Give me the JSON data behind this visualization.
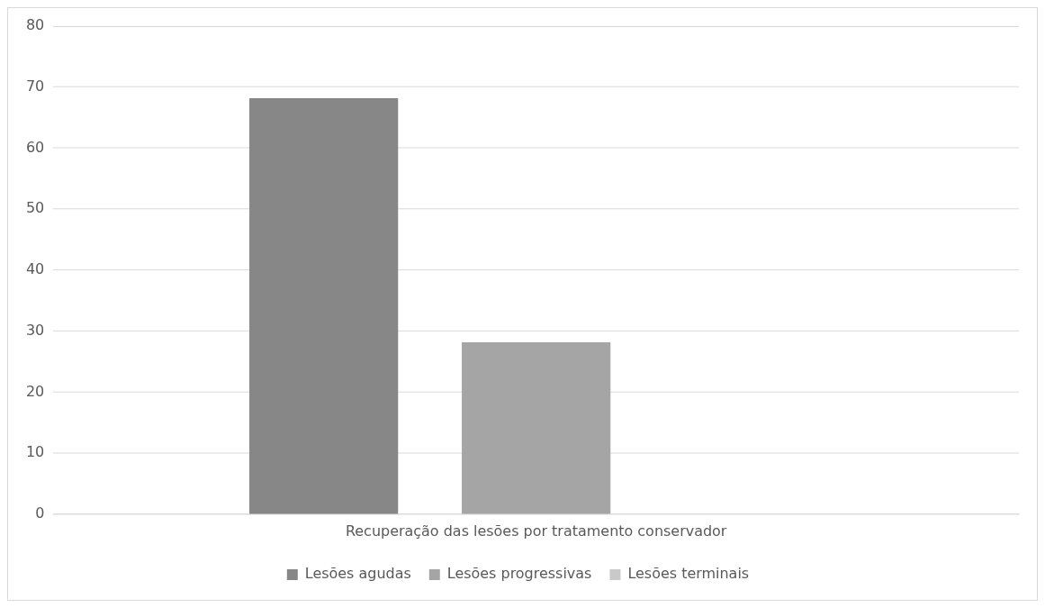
{
  "chart_data": {
    "type": "bar",
    "categories": [
      "Recuperação das lesões por tratamento conservador"
    ],
    "series": [
      {
        "name": "Lesões agudas",
        "color": "#878787",
        "values": [
          68.2
        ]
      },
      {
        "name": "Lesões progressivas",
        "color": "#a5a5a5",
        "values": [
          28.2
        ]
      },
      {
        "name": "Lesões terminais",
        "color": "#c9c9c9",
        "values": [
          0
        ]
      }
    ],
    "ylim": [
      0,
      80
    ],
    "yticks": [
      0,
      10,
      20,
      30,
      40,
      50,
      60,
      70,
      80
    ],
    "grid": "y",
    "legend": "bottom"
  }
}
